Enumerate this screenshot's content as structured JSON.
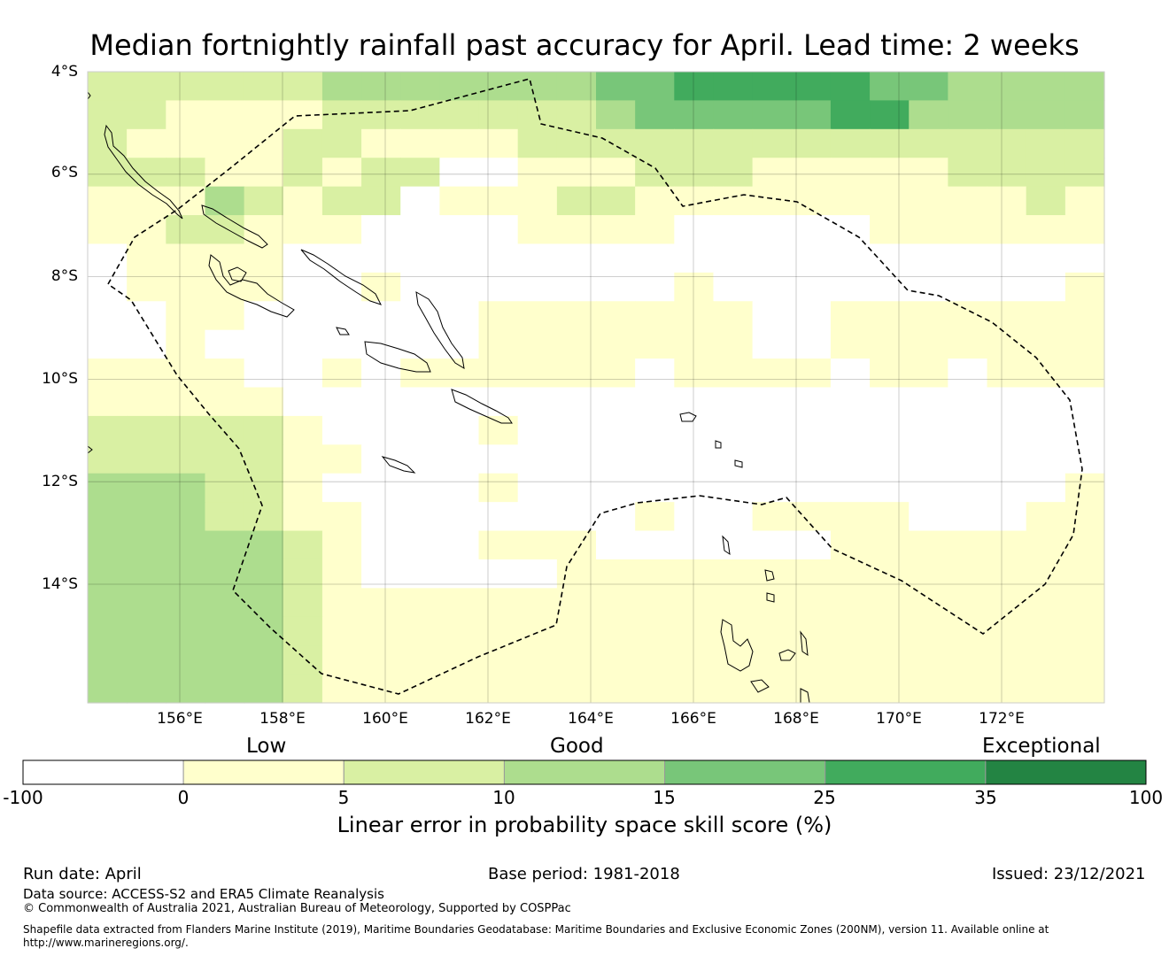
{
  "title": "Median fortnightly rainfall past accuracy for April. Lead time: 2 weeks",
  "axes": {
    "lat_labels": [
      "4°S",
      "6°S",
      "8°S",
      "10°S",
      "12°S",
      "14°S"
    ],
    "lon_labels": [
      "156°E",
      "158°E",
      "160°E",
      "162°E",
      "164°E",
      "166°E",
      "168°E",
      "170°E",
      "172°E"
    ],
    "lat_values": [
      -4,
      -6,
      -8,
      -10,
      -12,
      -14
    ],
    "lon_values": [
      156,
      158,
      160,
      162,
      164,
      166,
      168,
      170,
      172
    ]
  },
  "legend": {
    "categories": [
      "Low",
      "Good",
      "Exceptional"
    ],
    "ticks": [
      "-100",
      "0",
      "5",
      "10",
      "15",
      "25",
      "35",
      "100"
    ],
    "colors": [
      "#ffffff",
      "#ffffcc",
      "#d9f0a3",
      "#addd8e",
      "#78c679",
      "#41ab5d",
      "#238443"
    ],
    "title": "Linear error in probability space skill score (%)"
  },
  "footer": {
    "run_date": "Run date: April",
    "base_period": "Base period: 1981-2018",
    "issued": "Issued: 23/12/2021",
    "data_source": "Data source: ACCESS-S2 and ERA5 Climate Reanalysis",
    "copyright": "© Commonwealth of Australia 2021, Australian Bureau of Meteorology, Supported by COSPPac",
    "shapefile": "Shapefile data extracted from Flanders Marine Institute (2019), Maritime Boundaries Geodatabase: Maritime Boundaries and Exclusive Economic Zones (200NM), version 11. Available online at",
    "url": "http://www.marineregions.org/."
  },
  "grid": {
    "comment_levels": "level index into legend.colors",
    "rows": [
      "22222233333334455555443333",
      "22111122222223444445533333",
      "21111221111222222222222222",
      "22211212200111222111112222",
      "11132122011122111111111121",
      "11221110000111100000111111",
      "01111000000000000000000000",
      "01111001000000010000000001",
      "00110000001111111001111111",
      "00100000001111111001111111",
      "11110010111111011110110111",
      "11111000000000000000000000",
      "22222100001000000000000000",
      "22222110000000000000000000",
      "33322100001000000000000001",
      "33322110000000100111100011",
      "33333210001110000001111111",
      "33333210000011111111111111",
      "33333211111111111111111111",
      "33333211111111111111111111",
      "33333211111111111111111111",
      "33333211111111111111111111"
    ]
  }
}
